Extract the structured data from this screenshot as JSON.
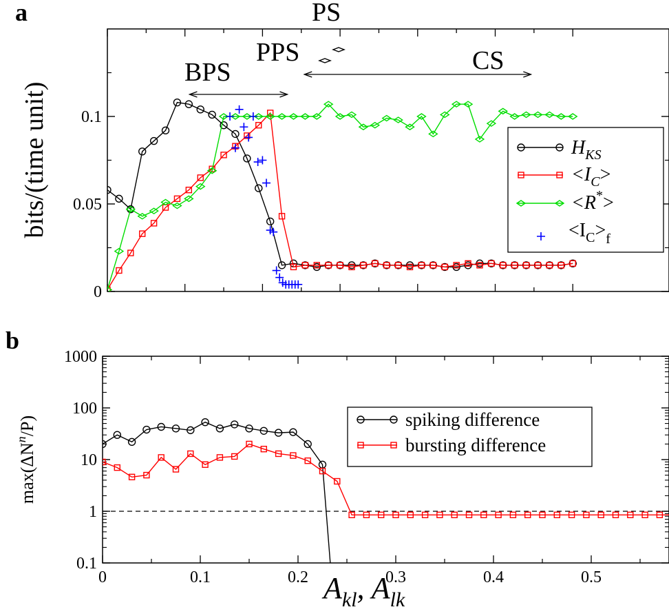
{
  "chart_data": [
    {
      "panel_label": "a",
      "type": "line",
      "ylabel": "bits/(time unit)",
      "xlim": [
        0,
        0.6
      ],
      "ylim": [
        0,
        0.15
      ],
      "y_ticks": [
        {
          "v": 0,
          "label": "0"
        },
        {
          "v": 0.05,
          "label": "0.05"
        },
        {
          "v": 0.1,
          "label": "0.1"
        }
      ],
      "annotations": [
        {
          "label": "PS"
        },
        {
          "label": "PPS"
        },
        {
          "label": "BPS",
          "x_range": [
            0.106,
            0.232
          ]
        },
        {
          "label": "CS",
          "x_range": [
            0.254,
            0.546
          ]
        }
      ],
      "legend": {
        "placement": "right",
        "entries": [
          {
            "pre": "H",
            "sub": "KS",
            "post": "",
            "sup": "",
            "color": "#000000",
            "marker": "circle"
          },
          {
            "pre": "<I",
            "sub": "C",
            "post": ">",
            "sup": "",
            "color": "#ff0000",
            "marker": "square"
          },
          {
            "pre": "<R",
            "sub": "",
            "post": ">",
            "sup": "*",
            "color": "#00dd00",
            "marker": "diamond"
          },
          {
            "pre": "<I",
            "sub": "C",
            "post": ">",
            "sup": "",
            "sub2": "f",
            "color": "#0000ff",
            "marker": "plus"
          }
        ]
      },
      "series": [
        {
          "name": "H_KS",
          "color": "#000000",
          "marker": "circle",
          "line": true,
          "x": [
            0,
            0.015,
            0.03,
            0.045,
            0.06,
            0.075,
            0.09,
            0.105,
            0.12,
            0.135,
            0.15,
            0.165,
            0.18,
            0.195,
            0.21,
            0.225,
            0.24,
            0.255,
            0.27,
            0.285,
            0.3,
            0.315,
            0.33,
            0.345,
            0.36,
            0.375,
            0.39,
            0.405,
            0.42,
            0.435,
            0.45,
            0.465,
            0.48,
            0.495,
            0.51,
            0.525,
            0.54,
            0.555,
            0.57,
            0.585,
            0.6
          ],
          "y": [
            0.058,
            0.053,
            0.047,
            0.08,
            0.086,
            0.092,
            0.108,
            0.107,
            0.104,
            0.101,
            0.095,
            0.09,
            0.076,
            0.059,
            0.04,
            0.015,
            0.016,
            0.015,
            0.014,
            0.015,
            0.015,
            0.015,
            0.015,
            0.016,
            0.015,
            0.015,
            0.015,
            0.015,
            0.015,
            0.014,
            0.014,
            0.015,
            0.016,
            0.016,
            0.015,
            0.015,
            0.015,
            0.015,
            0.015,
            0.015,
            0.016
          ]
        },
        {
          "name": "<I_C>",
          "color": "#ff0000",
          "marker": "square",
          "line": true,
          "x": [
            0,
            0.015,
            0.03,
            0.045,
            0.06,
            0.075,
            0.09,
            0.105,
            0.12,
            0.135,
            0.15,
            0.165,
            0.18,
            0.195,
            0.21,
            0.225,
            0.24,
            0.255,
            0.27,
            0.285,
            0.3,
            0.315,
            0.33,
            0.345,
            0.36,
            0.375,
            0.39,
            0.405,
            0.42,
            0.435,
            0.45,
            0.465,
            0.48,
            0.495,
            0.51,
            0.525,
            0.54,
            0.555,
            0.57,
            0.585,
            0.6
          ],
          "y": [
            0.001,
            0.012,
            0.022,
            0.033,
            0.039,
            0.048,
            0.053,
            0.058,
            0.065,
            0.07,
            0.078,
            0.083,
            0.089,
            0.095,
            0.102,
            0.043,
            0.014,
            0.015,
            0.015,
            0.015,
            0.015,
            0.014,
            0.015,
            0.016,
            0.015,
            0.015,
            0.014,
            0.015,
            0.015,
            0.014,
            0.015,
            0.016,
            0.015,
            0.016,
            0.015,
            0.015,
            0.015,
            0.015,
            0.015,
            0.015,
            0.016
          ]
        },
        {
          "name": "<R*>",
          "color": "#00dd00",
          "marker": "diamond",
          "line": true,
          "x": [
            0,
            0.015,
            0.03,
            0.045,
            0.06,
            0.075,
            0.09,
            0.105,
            0.12,
            0.135,
            0.15,
            0.165,
            0.18,
            0.195,
            0.21,
            0.225,
            0.24,
            0.255,
            0.27,
            0.285,
            0.3,
            0.315,
            0.33,
            0.345,
            0.36,
            0.375,
            0.39,
            0.405,
            0.42,
            0.435,
            0.45,
            0.465,
            0.48,
            0.495,
            0.51,
            0.525,
            0.54,
            0.555,
            0.57,
            0.585,
            0.6
          ],
          "y": [
            0.001,
            0.023,
            0.047,
            0.043,
            0.046,
            0.051,
            0.049,
            0.053,
            0.06,
            0.069,
            0.1,
            0.1,
            0.1,
            0.1,
            0.1,
            0.1,
            0.1,
            0.1,
            0.1,
            0.107,
            0.1,
            0.101,
            0.094,
            0.095,
            0.099,
            0.098,
            0.094,
            0.1,
            0.09,
            0.101,
            0.107,
            0.107,
            0.087,
            0.096,
            0.103,
            0.1,
            0.101,
            0.101,
            0.101,
            0.1,
            0.1
          ]
        },
        {
          "name": "<I_C>_f",
          "color": "#0000ff",
          "marker": "plus",
          "line": false,
          "x": [
            0.158,
            0.165,
            0.17,
            0.176,
            0.182,
            0.188,
            0.194,
            0.2,
            0.205,
            0.21,
            0.214,
            0.218,
            0.222,
            0.226,
            0.23,
            0.234,
            0.238,
            0.242,
            0.246
          ],
          "y": [
            0.1,
            0.082,
            0.104,
            0.094,
            0.088,
            0.1,
            0.074,
            0.075,
            0.062,
            0.035,
            0.034,
            0.012,
            0.008,
            0.005,
            0.004,
            0.004,
            0.004,
            0.004,
            0.004
          ]
        }
      ]
    },
    {
      "panel_label": "b",
      "type": "line",
      "ylabel": "max(ΔN",
      "ylabel_sup": "n",
      "ylabel_tail": "/P)",
      "xlabel": "A",
      "xlabel_sub1": "kl",
      "xlabel_mid": ", A",
      "xlabel_sub2": "lk",
      "xlim": [
        0,
        0.6
      ],
      "ylim": [
        0.1,
        1000
      ],
      "y_scale": "log",
      "x_ticks": [
        {
          "v": 0,
          "label": "0"
        },
        {
          "v": 0.1,
          "label": "0.1"
        },
        {
          "v": 0.2,
          "label": "0.2"
        },
        {
          "v": 0.3,
          "label": "0.3"
        },
        {
          "v": 0.4,
          "label": "0.4"
        },
        {
          "v": 0.5,
          "label": "0.5"
        }
      ],
      "y_ticks": [
        {
          "v": 0.1,
          "label": "0.1"
        },
        {
          "v": 1,
          "label": "1"
        },
        {
          "v": 10,
          "label": "10"
        },
        {
          "v": 100,
          "label": "100"
        },
        {
          "v": 1000,
          "label": "1000"
        }
      ],
      "reference_line": {
        "y": 1,
        "style": "dashed"
      },
      "legend": {
        "placement": "upper-right",
        "entries": [
          {
            "pre": "spiking difference",
            "color": "#000000",
            "marker": "circle"
          },
          {
            "pre": "bursting difference",
            "color": "#ff0000",
            "marker": "square"
          }
        ]
      },
      "series": [
        {
          "name": "spiking difference",
          "color": "#000000",
          "marker": "circle",
          "line": true,
          "x": [
            0,
            0.015,
            0.03,
            0.045,
            0.06,
            0.075,
            0.09,
            0.105,
            0.12,
            0.135,
            0.15,
            0.165,
            0.18,
            0.195,
            0.21,
            0.225
          ],
          "y": [
            20,
            30,
            22,
            38,
            43,
            40,
            37,
            53,
            40,
            48,
            40,
            36,
            33,
            34,
            20,
            8
          ],
          "tail_to": {
            "x": 0.233,
            "y": 0.1
          }
        },
        {
          "name": "bursting difference",
          "color": "#ff0000",
          "marker": "square",
          "line": true,
          "x": [
            0,
            0.015,
            0.03,
            0.045,
            0.06,
            0.075,
            0.09,
            0.105,
            0.12,
            0.135,
            0.15,
            0.165,
            0.18,
            0.195,
            0.21,
            0.225,
            0.24,
            0.255,
            0.27,
            0.285,
            0.3,
            0.315,
            0.33,
            0.345,
            0.36,
            0.375,
            0.39,
            0.405,
            0.42,
            0.435,
            0.45,
            0.465,
            0.48,
            0.495,
            0.51,
            0.525,
            0.54,
            0.555,
            0.57,
            0.585,
            0.6
          ],
          "y": [
            9,
            7,
            4.6,
            5,
            11,
            6.5,
            13,
            8,
            11,
            11.5,
            20,
            16,
            13,
            12,
            9.5,
            6,
            3.8,
            0.85,
            0.85,
            0.85,
            0.85,
            0.85,
            0.85,
            0.85,
            0.85,
            0.85,
            0.85,
            0.85,
            0.85,
            0.85,
            0.85,
            0.85,
            0.85,
            0.85,
            0.85,
            0.85,
            0.85,
            0.85,
            0.85,
            0.85,
            0.85
          ]
        }
      ]
    }
  ]
}
